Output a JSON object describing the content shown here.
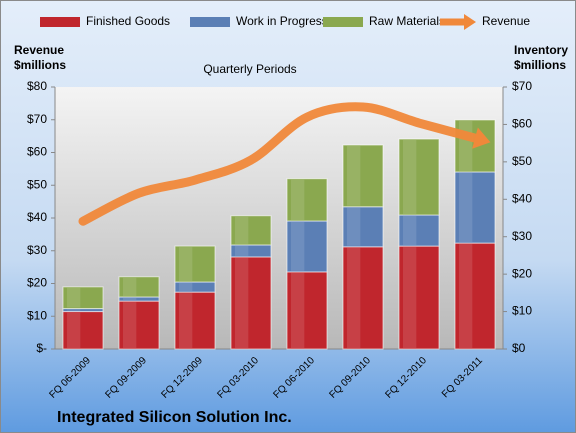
{
  "chart_data": {
    "type": "bar",
    "stacked": true,
    "title": "Quarterly Periods",
    "footer": "Integrated Silicon Solution Inc.",
    "y_label": [
      "Revenue",
      "$millions"
    ],
    "y2_label": [
      "Inventory",
      "$millions"
    ],
    "categories": [
      "FQ 06-2009",
      "FQ 09-2009",
      "FQ 12-2009",
      "FQ 03-2010",
      "FQ 06-2010",
      "FQ 09-2010",
      "FQ 12-2010",
      "FQ 03-2011"
    ],
    "series": [
      {
        "name": "Finished Goods",
        "type": "bar",
        "axis": "y2",
        "color": "#c0262d",
        "values": [
          10,
          12.8,
          15.2,
          24.6,
          20.6,
          27.3,
          27.5,
          28.3
        ]
      },
      {
        "name": "Work in Progress",
        "type": "bar",
        "axis": "y2",
        "color": "#5b7fb5",
        "values": [
          0.8,
          1.1,
          2.7,
          3.2,
          13.6,
          10.7,
          8.3,
          19
        ]
      },
      {
        "name": "Raw Materials",
        "type": "bar",
        "axis": "y2",
        "color": "#8aa84f",
        "values": [
          5.8,
          5.4,
          9.6,
          7.8,
          11.3,
          16.5,
          20.3,
          13.9
        ]
      },
      {
        "name": "Revenue",
        "type": "line",
        "axis": "y",
        "color": "#f0883a",
        "values": [
          39,
          47.6,
          51.6,
          57.7,
          70.8,
          73.9,
          69,
          64.4
        ]
      }
    ],
    "ylim": [
      0,
      80
    ],
    "yticks": [
      {
        "value": 0,
        "label": "$-"
      },
      {
        "value": 10,
        "label": "$10"
      },
      {
        "value": 20,
        "label": "$20"
      },
      {
        "value": 30,
        "label": "$30"
      },
      {
        "value": 40,
        "label": "$40"
      },
      {
        "value": 50,
        "label": "$50"
      },
      {
        "value": 60,
        "label": "$60"
      },
      {
        "value": 70,
        "label": "$70"
      },
      {
        "value": 80,
        "label": "$80"
      }
    ],
    "y2lim": [
      0,
      70
    ],
    "y2ticks": [
      {
        "value": 0,
        "label": "$0"
      },
      {
        "value": 10,
        "label": "$10"
      },
      {
        "value": 20,
        "label": "$20"
      },
      {
        "value": 30,
        "label": "$30"
      },
      {
        "value": 40,
        "label": "$40"
      },
      {
        "value": 50,
        "label": "$50"
      },
      {
        "value": 60,
        "label": "$60"
      },
      {
        "value": 70,
        "label": "$70"
      }
    ],
    "legend": "top"
  }
}
